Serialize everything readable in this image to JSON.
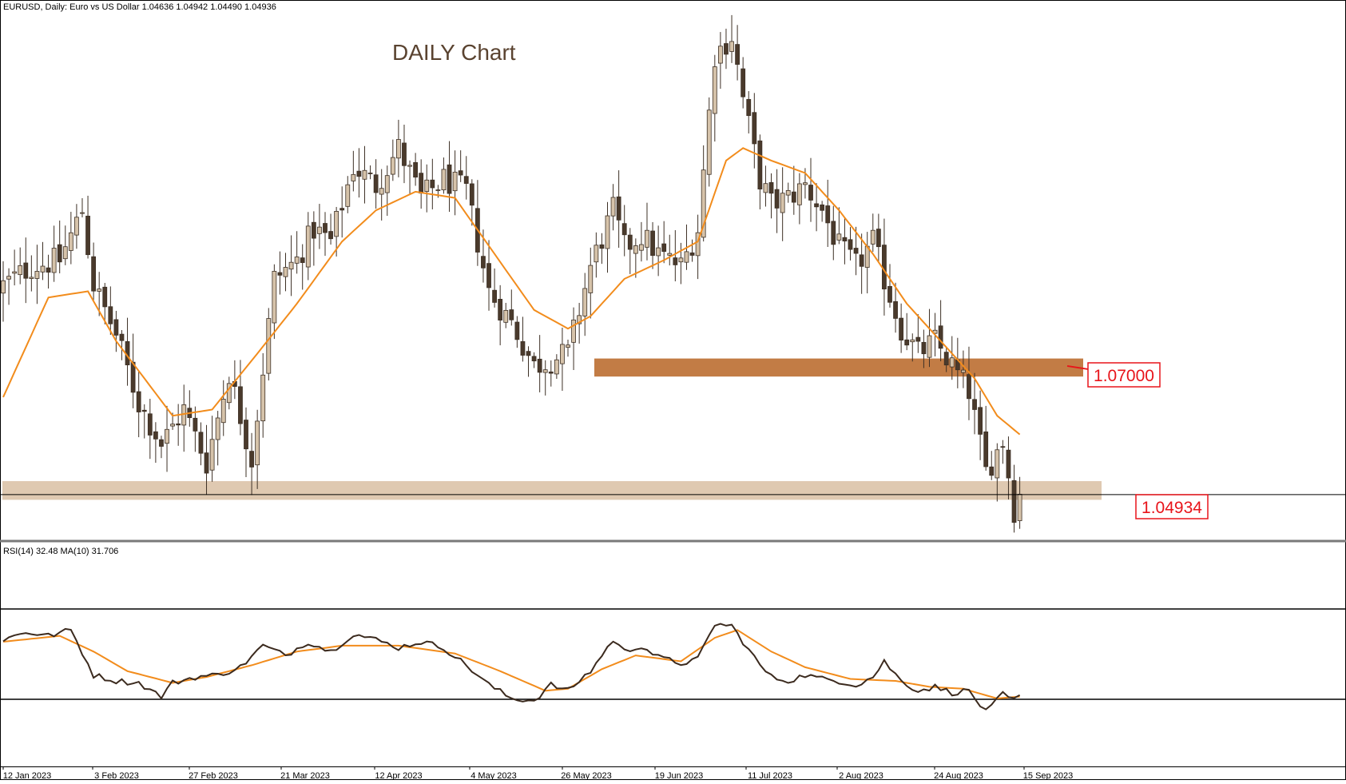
{
  "header": {
    "symbol_line": "EURUSD, Daily:  Euro vs US Dollar  1.04636 1.04942 1.04490 1.04936"
  },
  "title": "DAILY Chart",
  "rsi_header": "RSI(14) 32.48 MA(10) 31.706",
  "price_labels": {
    "resistance": "1.07000",
    "current": "1.04934"
  },
  "colors": {
    "bull_body": "#d6c3aa",
    "bear_body": "#4a3a2c",
    "wick": "#3d3025",
    "ma_line": "#f28c1c",
    "resistance_zone": "#c27c45",
    "support_zone": "#d9bfa3",
    "price_label": "#e8141a",
    "rsi_line": "#3b2a1e"
  },
  "chart_data": [
    {
      "type": "candlestick",
      "title": "DAILY Chart",
      "symbol": "EURUSD",
      "timeframe": "Daily",
      "x_tick_labels": [
        "12 Jan 2023",
        "3 Feb 2023",
        "27 Feb 2023",
        "21 Mar 2023",
        "12 Apr 2023",
        "4 May 2023",
        "26 May 2023",
        "19 Jun 2023",
        "11 Jul 2023",
        "2 Aug 2023",
        "24 Aug 2023",
        "15 Sep 2023"
      ],
      "close_anchors": [
        [
          0,
          1.083
        ],
        [
          5,
          1.086
        ],
        [
          10,
          1.087
        ],
        [
          14,
          1.095
        ],
        [
          16,
          1.083
        ],
        [
          20,
          1.075
        ],
        [
          24,
          1.064
        ],
        [
          28,
          1.0575
        ],
        [
          32,
          1.063
        ],
        [
          36,
          1.0545
        ],
        [
          40,
          1.069
        ],
        [
          44,
          1.055
        ],
        [
          48,
          1.084
        ],
        [
          52,
          1.087
        ],
        [
          55,
          1.092
        ],
        [
          58,
          1.09
        ],
        [
          62,
          1.102
        ],
        [
          66,
          1.099
        ],
        [
          70,
          1.105
        ],
        [
          74,
          1.097
        ],
        [
          78,
          1.1
        ],
        [
          82,
          1.098
        ],
        [
          86,
          1.082
        ],
        [
          90,
          1.077
        ],
        [
          94,
          1.07
        ],
        [
          97,
          1.071
        ],
        [
          100,
          1.072
        ],
        [
          104,
          1.086
        ],
        [
          108,
          1.095
        ],
        [
          110,
          1.089
        ],
        [
          113,
          1.091
        ],
        [
          116,
          1.088
        ],
        [
          120,
          1.086
        ],
        [
          123,
          1.092
        ],
        [
          126,
          1.12
        ],
        [
          129,
          1.123
        ],
        [
          131,
          1.113
        ],
        [
          134,
          1.1
        ],
        [
          136,
          1.096
        ],
        [
          139,
          1.097
        ],
        [
          142,
          1.099
        ],
        [
          145,
          1.095
        ],
        [
          148,
          1.089
        ],
        [
          151,
          1.086
        ],
        [
          154,
          1.09
        ],
        [
          156,
          1.084
        ],
        [
          159,
          1.076
        ],
        [
          162,
          1.072
        ],
        [
          165,
          1.074
        ],
        [
          168,
          1.07
        ],
        [
          171,
          1.066
        ],
        [
          174,
          1.053
        ],
        [
          177,
          1.058
        ],
        [
          179,
          1.047
        ],
        [
          180,
          1.0494
        ]
      ],
      "ma20_anchors": [
        [
          0,
          1.065
        ],
        [
          8,
          1.081
        ],
        [
          15,
          1.082
        ],
        [
          20,
          1.074
        ],
        [
          25,
          1.068
        ],
        [
          30,
          1.062
        ],
        [
          37,
          1.063
        ],
        [
          45,
          1.072
        ],
        [
          52,
          1.08
        ],
        [
          60,
          1.09
        ],
        [
          66,
          1.095
        ],
        [
          73,
          1.098
        ],
        [
          80,
          1.097
        ],
        [
          87,
          1.088
        ],
        [
          94,
          1.079
        ],
        [
          100,
          1.076
        ],
        [
          104,
          1.078
        ],
        [
          110,
          1.084
        ],
        [
          117,
          1.087
        ],
        [
          123,
          1.09
        ],
        [
          128,
          1.103
        ],
        [
          131,
          1.105
        ],
        [
          136,
          1.103
        ],
        [
          142,
          1.101
        ],
        [
          148,
          1.095
        ],
        [
          154,
          1.088
        ],
        [
          160,
          1.08
        ],
        [
          166,
          1.074
        ],
        [
          172,
          1.068
        ],
        [
          176,
          1.062
        ],
        [
          180,
          1.059
        ]
      ],
      "levels": [
        {
          "label": "1.07000",
          "value": 1.07
        },
        {
          "label": "1.04934",
          "value": 1.04934
        }
      ],
      "support_zone": [
        1.0485,
        1.0515
      ],
      "resistance_zone": [
        1.0683,
        1.0712
      ],
      "ylim": [
        1.0438,
        1.1252
      ]
    },
    {
      "type": "line",
      "title": "RSI(14) 32.48 MA(10) 31.706",
      "series": [
        {
          "name": "RSI(14)",
          "anchors": [
            [
              0,
              61
            ],
            [
              4,
              65
            ],
            [
              8,
              63
            ],
            [
              12,
              66
            ],
            [
              16,
              43
            ],
            [
              20,
              40
            ],
            [
              24,
              39
            ],
            [
              28,
              32
            ],
            [
              30,
              39
            ],
            [
              34,
              42
            ],
            [
              38,
              43
            ],
            [
              42,
              47
            ],
            [
              46,
              58
            ],
            [
              50,
              53
            ],
            [
              54,
              60
            ],
            [
              58,
              55
            ],
            [
              62,
              64
            ],
            [
              66,
              61
            ],
            [
              70,
              57
            ],
            [
              74,
              60
            ],
            [
              78,
              57
            ],
            [
              82,
              48
            ],
            [
              86,
              38
            ],
            [
              90,
              31
            ],
            [
              94,
              30
            ],
            [
              97,
              38
            ],
            [
              100,
              35
            ],
            [
              104,
              45
            ],
            [
              108,
              61
            ],
            [
              110,
              55
            ],
            [
              113,
              58
            ],
            [
              116,
              52
            ],
            [
              120,
              49
            ],
            [
              123,
              51
            ],
            [
              126,
              69
            ],
            [
              129,
              68
            ],
            [
              131,
              60
            ],
            [
              134,
              48
            ],
            [
              136,
              42
            ],
            [
              139,
              40
            ],
            [
              142,
              43
            ],
            [
              145,
              41
            ],
            [
              148,
              40
            ],
            [
              151,
              38
            ],
            [
              154,
              42
            ],
            [
              156,
              50
            ],
            [
              159,
              40
            ],
            [
              162,
              35
            ],
            [
              165,
              37
            ],
            [
              168,
              34
            ],
            [
              171,
              35
            ],
            [
              174,
              24
            ],
            [
              177,
              33
            ],
            [
              179,
              30
            ],
            [
              180,
              32
            ]
          ]
        },
        {
          "name": "MA(10)",
          "anchors": [
            [
              0,
              60
            ],
            [
              10,
              63
            ],
            [
              16,
              55
            ],
            [
              22,
              45
            ],
            [
              30,
              39
            ],
            [
              36,
              42
            ],
            [
              44,
              48
            ],
            [
              52,
              55
            ],
            [
              60,
              58
            ],
            [
              70,
              58
            ],
            [
              80,
              54
            ],
            [
              88,
              45
            ],
            [
              96,
              35
            ],
            [
              100,
              36
            ],
            [
              106,
              46
            ],
            [
              112,
              53
            ],
            [
              120,
              50
            ],
            [
              126,
              62
            ],
            [
              130,
              66
            ],
            [
              136,
              55
            ],
            [
              142,
              47
            ],
            [
              150,
              41
            ],
            [
              158,
              40
            ],
            [
              164,
              37
            ],
            [
              170,
              36
            ],
            [
              176,
              31
            ],
            [
              180,
              32
            ]
          ]
        }
      ],
      "levels": [
        70,
        30
      ],
      "ylim": [
        0,
        100
      ]
    }
  ]
}
